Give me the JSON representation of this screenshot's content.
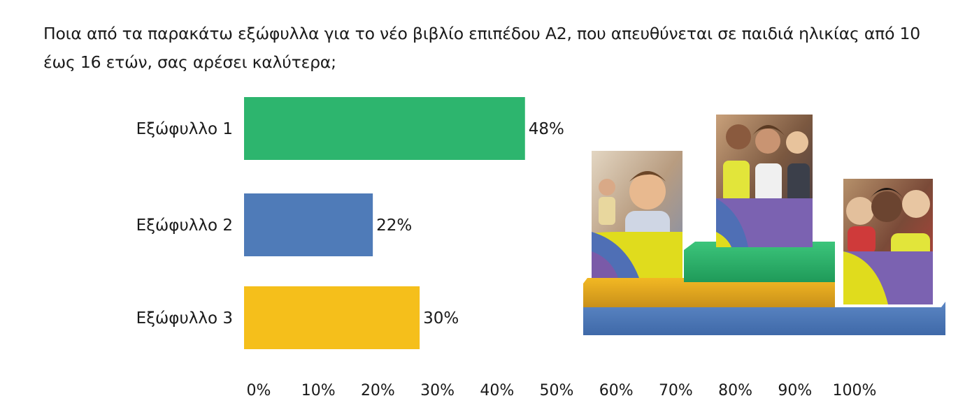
{
  "question": "Ποια από τα παρακάτω εξώφυλλα για το νέο βιβλίο επιπέδου Α2, που απευθύνεται σε παιδιά ηλικίας από 10 έως 16 ετών, σας αρέσει καλύτερα;",
  "chart_data": {
    "type": "bar",
    "orientation": "horizontal",
    "title": "Ποια από τα παρακάτω εξώφυλλα για το νέο βιβλίο επιπέδου Α2, που απευθύνεται σε παιδιά ηλικίας από 10 έως 16 ετών, σας αρέσει καλύτερα;",
    "categories": [
      "Εξώφυλλο 1",
      "Εξώφυλλο 2",
      "Εξώφυλλο 3"
    ],
    "values": [
      48,
      22,
      30
    ],
    "value_labels": [
      "48%",
      "22%",
      "30%"
    ],
    "colors": [
      "#2db56e",
      "#4f7bb8",
      "#f5bf1b"
    ],
    "xlim": [
      0,
      100
    ],
    "ticks": [
      "0%",
      "10%",
      "20%",
      "30%",
      "40%",
      "50%",
      "60%",
      "70%",
      "80%",
      "90%",
      "100%"
    ],
    "tick_values": [
      0,
      10,
      20,
      30,
      40,
      50,
      60,
      70,
      80,
      90,
      100
    ],
    "grid": false,
    "legend": "none"
  }
}
